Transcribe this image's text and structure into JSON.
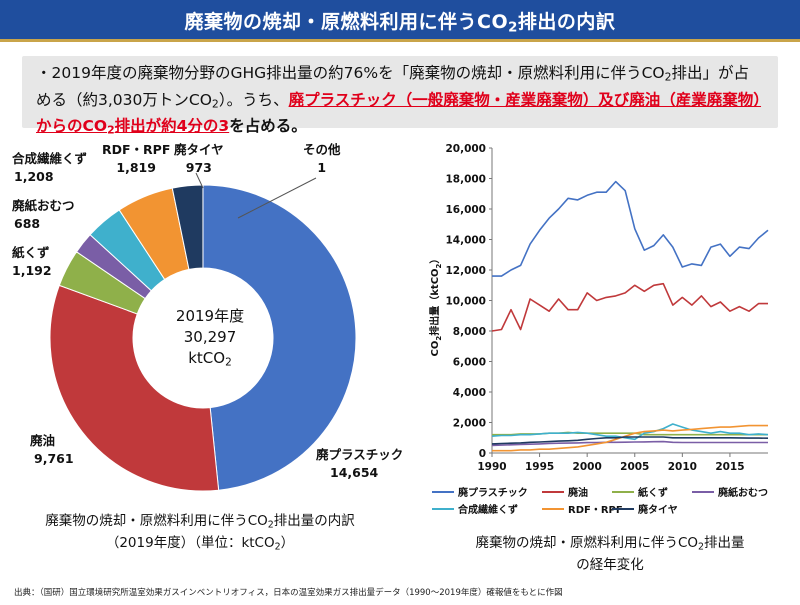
{
  "header": {
    "title_pre": "廃棄物の焼却・原燃料利用に伴うCO",
    "title_sub": "2",
    "title_post": "排出の内訳"
  },
  "summary": {
    "p1": "・2019年度の廃棄物分野のGHG排出量の約76%を「廃棄物の焼却・原燃料利用に伴うCO",
    "p1_sub": "2",
    "p2": "排出」が占める（約3,030万トンCO",
    "p2_sub": "2",
    "p3": "）。うち、",
    "hl1": "廃プラスチック（一般廃棄物・産業廃棄物）及び廃油（産業廃棄物）からのCO",
    "hl1_sub": "2",
    "hl2": "排出が約4分の3",
    "p4": "を占める。"
  },
  "donut": {
    "center_year": "2019年度",
    "center_total": "30,297",
    "center_unit_pre": "ktCO",
    "center_unit_sub": "2",
    "caption_l1_pre": "廃棄物の焼却・原燃料利用に伴うCO",
    "caption_l1_sub": "2",
    "caption_l1_post": "排出量の内訳",
    "caption_l2_pre": "（2019年度）（単位：ktCO",
    "caption_l2_sub": "2",
    "caption_l2_post": "）"
  },
  "line": {
    "caption_l1_pre": "廃棄物の焼却・原燃料利用に伴うCO",
    "caption_l1_sub": "2",
    "caption_l1_post": "排出量",
    "caption_l2": "の経年変化"
  },
  "source": "出典：（国研）国立環境研究所温室効果ガスインベントリオフィス，日本の温室効果ガス排出量データ（1990〜2019年度）確報値をもとに作図",
  "chart_data": [
    {
      "type": "pie",
      "title": "2019年度",
      "slices": [
        {
          "label": "廃プラスチック",
          "value": 14654,
          "value_label": "14,654",
          "color": "#4472c4"
        },
        {
          "label": "廃油",
          "value": 9761,
          "value_label": "9,761",
          "color": "#c0393b"
        },
        {
          "label": "紙くず",
          "value": 1192,
          "value_label": "1,192",
          "color": "#8fb04a"
        },
        {
          "label": "廃紙おむつ",
          "value": 688,
          "value_label": "688",
          "color": "#7a5ea6"
        },
        {
          "label": "合成繊維くず",
          "value": 1208,
          "value_label": "1,208",
          "color": "#3fb0cc"
        },
        {
          "label": "RDF・RPF",
          "value": 1819,
          "value_label": "1,819",
          "color": "#f29432"
        },
        {
          "label": "廃タイヤ",
          "value": 973,
          "value_label": "973",
          "color": "#1f3a60"
        },
        {
          "label": "その他",
          "value": 1,
          "value_label": "1",
          "color": "#999999"
        }
      ]
    },
    {
      "type": "line",
      "xlabel": "",
      "ylabel_pre": "CO",
      "ylabel_sub": "2",
      "ylabel_post": "排出量（ktCO",
      "ylabel_sub2": "2",
      "ylabel_end": "）",
      "xlim": [
        1990,
        2019
      ],
      "ylim": [
        0,
        20000
      ],
      "xticks": [
        1990,
        1995,
        2000,
        2005,
        2010,
        2015
      ],
      "yticks": [
        0,
        2000,
        4000,
        6000,
        8000,
        10000,
        12000,
        14000,
        16000,
        18000,
        20000
      ],
      "ytick_labels": [
        "0",
        "2,000",
        "4,000",
        "6,000",
        "8,000",
        "10,000",
        "12,000",
        "14,000",
        "16,000",
        "18,000",
        "20,000"
      ],
      "grid": false,
      "legend_position": "bottom",
      "x": [
        1990,
        1991,
        1992,
        1993,
        1994,
        1995,
        1996,
        1997,
        1998,
        1999,
        2000,
        2001,
        2002,
        2003,
        2004,
        2005,
        2006,
        2007,
        2008,
        2009,
        2010,
        2011,
        2012,
        2013,
        2014,
        2015,
        2016,
        2017,
        2018,
        2019
      ],
      "series": [
        {
          "name": "廃プラスチック",
          "color": "#4472c4",
          "values": [
            11600,
            11600,
            12000,
            12300,
            13700,
            14600,
            15400,
            16000,
            16700,
            16600,
            16900,
            17100,
            17100,
            17800,
            17200,
            14700,
            13300,
            13600,
            14300,
            13500,
            12200,
            12400,
            12300,
            13500,
            13700,
            12900,
            13500,
            13400,
            14100,
            14600
          ]
        },
        {
          "name": "廃油",
          "color": "#c0393b",
          "values": [
            8000,
            8100,
            9400,
            8100,
            10100,
            9700,
            9300,
            10100,
            9400,
            9400,
            10500,
            10000,
            10200,
            10300,
            10500,
            11000,
            10600,
            11000,
            11100,
            9700,
            10200,
            9700,
            10300,
            9600,
            9900,
            9300,
            9600,
            9300,
            9800,
            9800
          ]
        },
        {
          "name": "紙くず",
          "color": "#8fb04a",
          "values": [
            1200,
            1200,
            1200,
            1250,
            1250,
            1250,
            1300,
            1300,
            1350,
            1300,
            1300,
            1300,
            1300,
            1300,
            1300,
            1300,
            1200,
            1200,
            1200,
            1200,
            1200,
            1200,
            1200,
            1200,
            1200,
            1200,
            1200,
            1200,
            1200,
            1200
          ]
        },
        {
          "name": "廃紙おむつ",
          "color": "#7a5ea6",
          "values": [
            500,
            520,
            540,
            560,
            580,
            600,
            620,
            640,
            650,
            660,
            680,
            690,
            700,
            700,
            710,
            720,
            730,
            740,
            750,
            700,
            690,
            690,
            690,
            690,
            690,
            690,
            690,
            690,
            690,
            690
          ]
        },
        {
          "name": "合成繊維くず",
          "color": "#3fb0cc",
          "values": [
            1100,
            1150,
            1150,
            1200,
            1200,
            1250,
            1300,
            1300,
            1300,
            1350,
            1300,
            1200,
            1100,
            1100,
            1000,
            900,
            1300,
            1400,
            1600,
            1900,
            1700,
            1500,
            1400,
            1300,
            1400,
            1300,
            1300,
            1200,
            1250,
            1200
          ]
        },
        {
          "name": "RDF・RPF",
          "color": "#f29432",
          "values": [
            150,
            150,
            150,
            200,
            200,
            250,
            250,
            300,
            350,
            400,
            500,
            600,
            700,
            900,
            1100,
            1300,
            1400,
            1450,
            1500,
            1450,
            1500,
            1550,
            1600,
            1650,
            1700,
            1700,
            1750,
            1800,
            1800,
            1800
          ]
        },
        {
          "name": "廃タイヤ",
          "color": "#1f3a60",
          "values": [
            600,
            620,
            640,
            660,
            700,
            720,
            750,
            780,
            800,
            830,
            900,
            950,
            1000,
            1000,
            1050,
            1050,
            1050,
            1050,
            1050,
            1000,
            1000,
            1000,
            1000,
            1000,
            1000,
            1000,
            990,
            980,
            975,
            973
          ]
        }
      ]
    }
  ]
}
